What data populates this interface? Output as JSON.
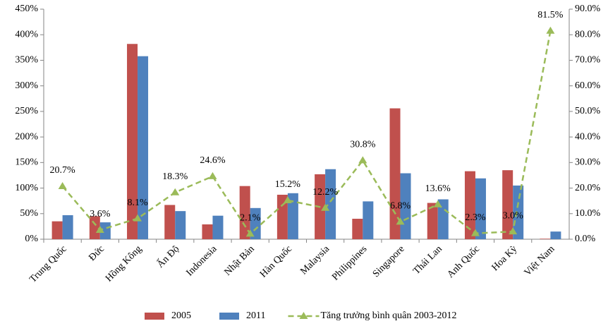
{
  "chart_data": {
    "type": "bar",
    "categories": [
      "Trung Quốc",
      "Đức",
      "Hồng Kông",
      "Ấn Độ",
      "Indonesia",
      "Nhật Bản",
      "Hàn Quốc",
      "Malaysia",
      "Philippines",
      "Singapore",
      "Thái Lan",
      "Anh Quốc",
      "Hoa Kỳ",
      "Việt Nam"
    ],
    "series": [
      {
        "name": "2005",
        "type": "bar",
        "color": "#c0504d",
        "values": [
          35,
          45,
          382,
          67,
          29,
          104,
          87,
          127,
          40,
          256,
          71,
          133,
          135,
          1
        ]
      },
      {
        "name": "2011",
        "type": "bar",
        "color": "#4f81bd",
        "values": [
          47,
          33,
          358,
          55,
          46,
          61,
          90,
          137,
          74,
          129,
          78,
          119,
          105,
          15
        ]
      },
      {
        "name": "Tăng trưởng bình quân 2003-2012",
        "type": "line",
        "axis": "y2",
        "color": "#9bbb59",
        "values": [
          20.7,
          3.6,
          8.1,
          18.3,
          24.6,
          2.1,
          15.2,
          12.2,
          30.8,
          6.8,
          13.6,
          2.3,
          3.0,
          81.5
        ],
        "value_labels": [
          "20.7%",
          "3.6%",
          "8.1%",
          "18.3%",
          "24.6%",
          "2.1%",
          "15.2%",
          "12.2%",
          "30.8%",
          "6.8%",
          "13.6%",
          "2.3%",
          "3.0%",
          "81.5%"
        ]
      }
    ],
    "ylim": [
      0,
      450
    ],
    "yticks": [
      {
        "value": 0,
        "label": "0%"
      },
      {
        "value": 50,
        "label": "50%"
      },
      {
        "value": 100,
        "label": "100%"
      },
      {
        "value": 150,
        "label": "150%"
      },
      {
        "value": 200,
        "label": "200%"
      },
      {
        "value": 250,
        "label": "250%"
      },
      {
        "value": 300,
        "label": "300%"
      },
      {
        "value": 350,
        "label": "350%"
      },
      {
        "value": 400,
        "label": "400%"
      },
      {
        "value": 450,
        "label": "450%"
      }
    ],
    "y2lim": [
      0,
      90
    ],
    "y2ticks": [
      {
        "value": 0,
        "label": "0.0%"
      },
      {
        "value": 10,
        "label": "10.0%"
      },
      {
        "value": 20,
        "label": "20.0%"
      },
      {
        "value": 30,
        "label": "30.0%"
      },
      {
        "value": 40,
        "label": "40.0%"
      },
      {
        "value": 50,
        "label": "50.0%"
      },
      {
        "value": 60,
        "label": "60.0%"
      },
      {
        "value": 70,
        "label": "70.0%"
      },
      {
        "value": 80,
        "label": "80.0%"
      },
      {
        "value": 90,
        "label": "90.0%"
      }
    ],
    "grid": false,
    "legend": "bottom"
  }
}
